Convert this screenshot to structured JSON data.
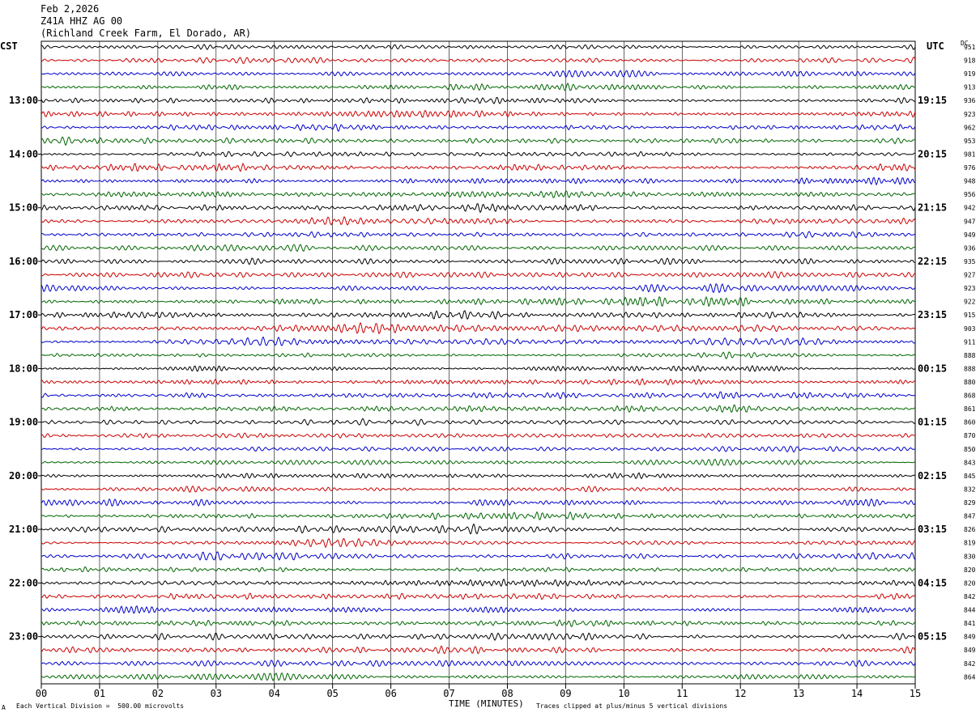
{
  "header": {
    "date": "Feb 2,2026",
    "station": "Z41A HHZ AG 00",
    "location": "(Richland Creek Farm, El Dorado, AR)"
  },
  "axis": {
    "left_tz": "CST",
    "right_tz": "UTC",
    "dc_label": "DC",
    "xlabel": "TIME (MINUTES)"
  },
  "footer": {
    "scale_note": "Each Vertical Division =  500.00 microvolts",
    "clip_note": "Traces clipped at plus/minus 5 vertical divisions",
    "corner_mark": "A"
  },
  "colors": {
    "trace_cycle": [
      "#000000",
      "#cc0000",
      "#0000cc",
      "#006600"
    ],
    "grid": "#000000"
  },
  "chart_data": {
    "type": "line",
    "title": "Z41A HHZ AG 00",
    "xlim": [
      0,
      15
    ],
    "x_ticks": [
      "00",
      "01",
      "02",
      "03",
      "04",
      "05",
      "06",
      "07",
      "08",
      "09",
      "10",
      "11",
      "12",
      "13",
      "14",
      "15"
    ],
    "traces_per_hour": 4,
    "trace_count": 48,
    "hour_labels_left": [
      "13:00",
      "14:00",
      "15:00",
      "16:00",
      "17:00",
      "18:00",
      "19:00",
      "20:00",
      "21:00",
      "22:00",
      "23:00"
    ],
    "hour_labels_right": [
      "19:15",
      "20:15",
      "21:15",
      "22:15",
      "23:15",
      "00:15",
      "01:15",
      "02:15",
      "03:15",
      "04:15",
      "05:15"
    ],
    "dc_offsets": [
      951,
      918,
      919,
      913,
      936,
      923,
      962,
      953,
      981,
      976,
      948,
      956,
      942,
      947,
      949,
      936,
      935,
      927,
      923,
      922,
      915,
      903,
      911,
      888,
      888,
      880,
      868,
      861,
      860,
      870,
      850,
      843,
      845,
      832,
      829,
      847,
      826,
      819,
      830,
      820,
      820,
      842,
      844,
      841,
      849,
      849,
      842,
      864
    ]
  }
}
